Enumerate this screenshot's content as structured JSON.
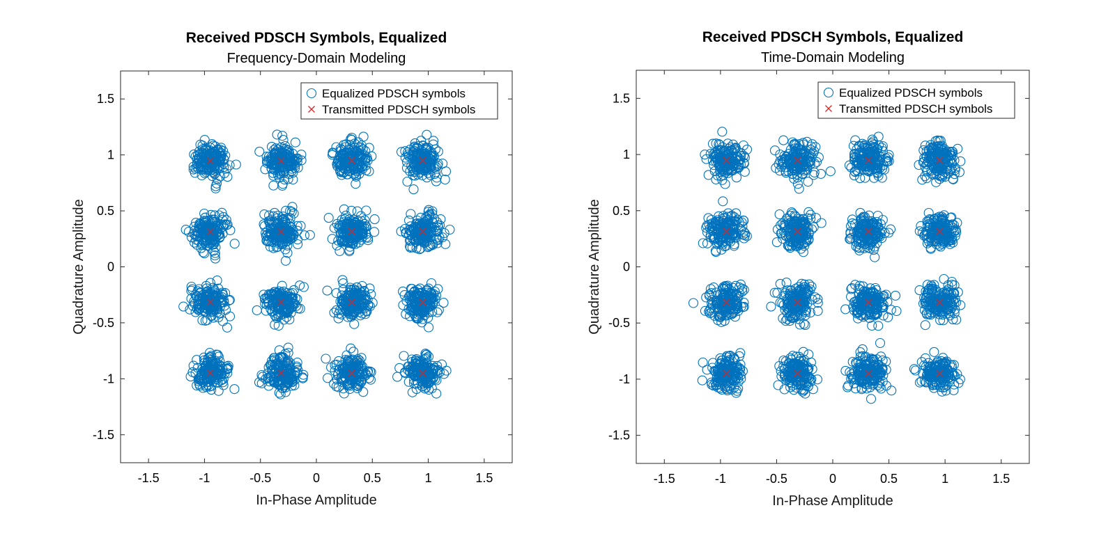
{
  "chart_data": [
    {
      "type": "scatter",
      "title": "Received PDSCH Symbols, Equalized",
      "subtitle": "Frequency-Domain Modeling",
      "xlabel": "In-Phase Amplitude",
      "ylabel": "Quadrature Amplitude",
      "xlim": [
        -1.75,
        1.75
      ],
      "ylim": [
        -1.75,
        1.75
      ],
      "xticks": [
        "-1.5",
        "-1",
        "-0.5",
        "0",
        "0.5",
        "1",
        "1.5"
      ],
      "yticks": [
        "1.5",
        "1",
        "0.5",
        "0",
        "-0.5",
        "-1",
        "-1.5"
      ],
      "grid": false,
      "legend_position": "top-right",
      "series": [
        {
          "name": "Equalized PDSCH symbols",
          "marker": "circle",
          "color": "#0072BD",
          "cluster_centers": [
            -0.949,
            -0.316,
            0.316,
            0.949
          ],
          "points_per_constellation_point": 160,
          "spread_std": 0.075
        },
        {
          "name": "Transmitted PDSCH symbols",
          "marker": "x",
          "color": "#D62728",
          "x": [
            -0.949,
            -0.316,
            0.316,
            0.949
          ],
          "y": [
            -0.949,
            -0.316,
            0.316,
            0.949
          ]
        }
      ]
    },
    {
      "type": "scatter",
      "title": "Received PDSCH Symbols, Equalized",
      "subtitle": "Time-Domain Modeling",
      "xlabel": "In-Phase Amplitude",
      "ylabel": "Quadrature Amplitude",
      "xlim": [
        -1.75,
        1.75
      ],
      "ylim": [
        -1.75,
        1.75
      ],
      "xticks": [
        "-1.5",
        "-1",
        "-0.5",
        "0",
        "0.5",
        "1",
        "1.5"
      ],
      "yticks": [
        "1.5",
        "1",
        "0.5",
        "0",
        "-0.5",
        "-1",
        "-1.5"
      ],
      "grid": false,
      "legend_position": "top-right",
      "series": [
        {
          "name": "Equalized PDSCH symbols",
          "marker": "circle",
          "color": "#0072BD",
          "cluster_centers": [
            -0.949,
            -0.316,
            0.316,
            0.949
          ],
          "points_per_constellation_point": 160,
          "spread_std": 0.075
        },
        {
          "name": "Transmitted PDSCH symbols",
          "marker": "x",
          "color": "#D62728",
          "x": [
            -0.949,
            -0.316,
            0.316,
            0.949
          ],
          "y": [
            -0.949,
            -0.316,
            0.316,
            0.949
          ]
        }
      ]
    }
  ]
}
